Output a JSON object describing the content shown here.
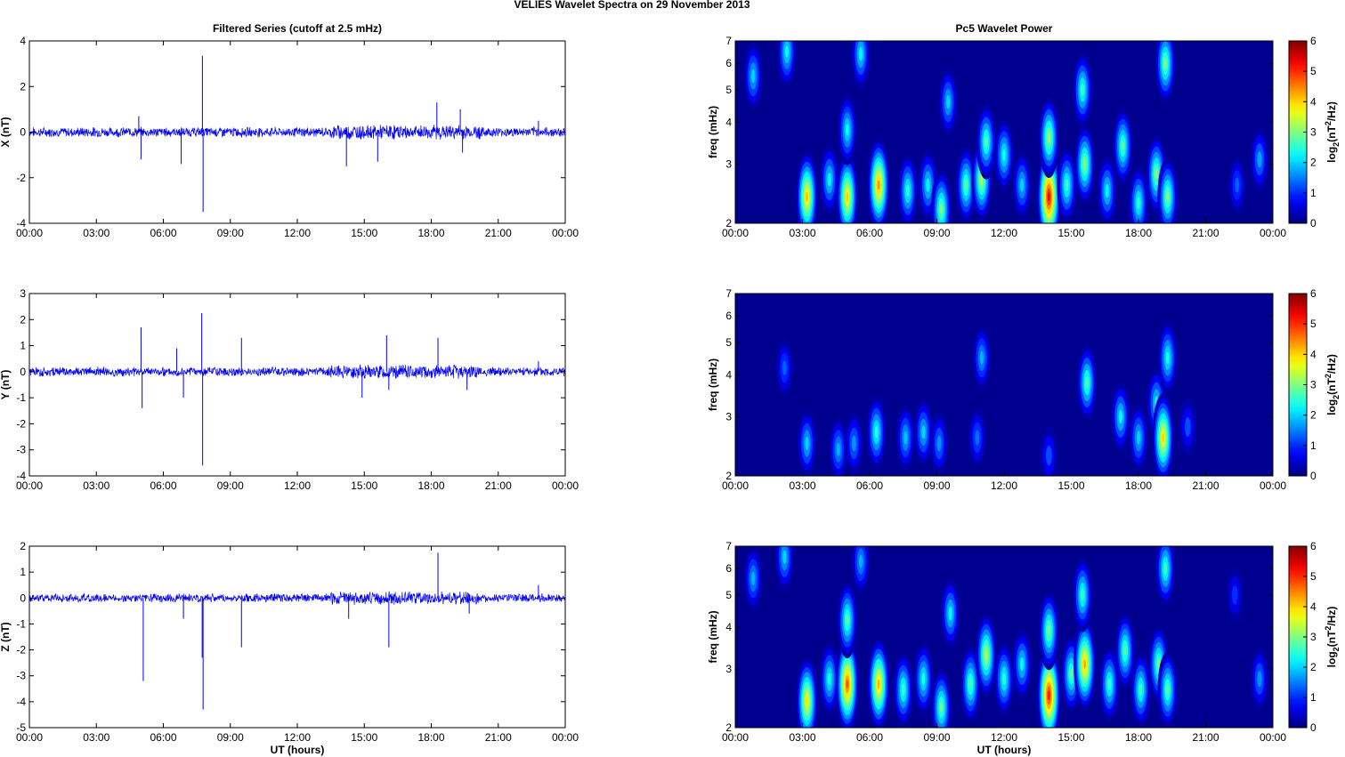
{
  "figure": {
    "suptitle": "VELIES Wavelet Spectra on 29 November  2013"
  },
  "colors": {
    "series": "#0000ff",
    "axis": "#000000",
    "spectrum_background": "#00008f",
    "colormap": "jet"
  },
  "chart_data": [
    {
      "id": "ts-x",
      "type": "line",
      "title": "Filtered Series (cutoff at 2.5 mHz)",
      "ylabel": "X (nT)",
      "xlabel": "",
      "xlim": [
        0,
        24
      ],
      "ylim": [
        -4,
        4
      ],
      "xticks": [
        "00:00",
        "03:00",
        "06:00",
        "09:00",
        "12:00",
        "15:00",
        "18:00",
        "21:00",
        "00:00"
      ],
      "yticks": [
        "-4",
        "-2",
        "0",
        "2",
        "4"
      ],
      "noise_amplitude": 0.18,
      "spikes": [
        {
          "x": 4.9,
          "y": 0.7
        },
        {
          "x": 5.0,
          "y": -1.2
        },
        {
          "x": 6.8,
          "y": -1.4
        },
        {
          "x": 7.75,
          "y": 3.35
        },
        {
          "x": 7.78,
          "y": -3.5
        },
        {
          "x": 14.2,
          "y": -1.5
        },
        {
          "x": 15.6,
          "y": -1.3
        },
        {
          "x": 18.25,
          "y": 1.3
        },
        {
          "x": 19.3,
          "y": 1.0
        },
        {
          "x": 19.4,
          "y": -0.9
        },
        {
          "x": 22.8,
          "y": 0.5
        }
      ]
    },
    {
      "id": "ts-y",
      "type": "line",
      "title": "",
      "ylabel": "Y (nT)",
      "xlabel": "",
      "xlim": [
        0,
        24
      ],
      "ylim": [
        -4,
        3
      ],
      "xticks": [
        "00:00",
        "03:00",
        "06:00",
        "09:00",
        "12:00",
        "15:00",
        "18:00",
        "21:00",
        "00:00"
      ],
      "yticks": [
        "-4",
        "-3",
        "-2",
        "-1",
        "0",
        "1",
        "2",
        "3"
      ],
      "noise_amplitude": 0.15,
      "spikes": [
        {
          "x": 5.0,
          "y": 1.7
        },
        {
          "x": 5.05,
          "y": -1.4
        },
        {
          "x": 6.6,
          "y": 0.9
        },
        {
          "x": 6.9,
          "y": -1.0
        },
        {
          "x": 7.72,
          "y": 2.25
        },
        {
          "x": 7.76,
          "y": -3.6
        },
        {
          "x": 9.5,
          "y": 1.3
        },
        {
          "x": 14.9,
          "y": -1.0
        },
        {
          "x": 16.0,
          "y": 1.4
        },
        {
          "x": 16.1,
          "y": -0.7
        },
        {
          "x": 18.3,
          "y": 1.3
        },
        {
          "x": 19.6,
          "y": -0.7
        },
        {
          "x": 22.8,
          "y": 0.4
        }
      ]
    },
    {
      "id": "ts-z",
      "type": "line",
      "title": "",
      "ylabel": "Z (nT)",
      "xlabel": "UT (hours)",
      "xlim": [
        0,
        24
      ],
      "ylim": [
        -5,
        2
      ],
      "xticks": [
        "00:00",
        "03:00",
        "06:00",
        "09:00",
        "12:00",
        "15:00",
        "18:00",
        "21:00",
        "00:00"
      ],
      "yticks": [
        "-5",
        "-4",
        "-3",
        "-2",
        "-1",
        "0",
        "1",
        "2"
      ],
      "noise_amplitude": 0.14,
      "spikes": [
        {
          "x": 5.1,
          "y": -3.2
        },
        {
          "x": 6.9,
          "y": -0.8
        },
        {
          "x": 7.78,
          "y": -4.3
        },
        {
          "x": 7.74,
          "y": -2.3
        },
        {
          "x": 9.5,
          "y": -1.9
        },
        {
          "x": 14.3,
          "y": -0.8
        },
        {
          "x": 16.1,
          "y": -1.9
        },
        {
          "x": 18.3,
          "y": 1.75
        },
        {
          "x": 19.7,
          "y": -0.6
        },
        {
          "x": 22.8,
          "y": 0.5
        }
      ]
    },
    {
      "id": "wp-x",
      "type": "heatmap",
      "title": "Pc5 Wavelet Power",
      "ylabel": "freq (mHz)",
      "xlabel": "",
      "xlim": [
        0,
        24
      ],
      "ylim": [
        2,
        7
      ],
      "yscale": "log",
      "xticks": [
        "00:00",
        "03:00",
        "06:00",
        "09:00",
        "12:00",
        "15:00",
        "18:00",
        "21:00",
        "00:00"
      ],
      "yticks": [
        "2",
        "3",
        "4",
        "5",
        "6",
        "7"
      ],
      "colorbar": {
        "label": "log2(nT^2/Hz)",
        "lim": [
          0,
          6
        ],
        "ticks": [
          "0",
          "1",
          "2",
          "3",
          "4",
          "5",
          "6"
        ]
      },
      "blobs": [
        {
          "t": 0.8,
          "f": 5.5,
          "p": 2.0
        },
        {
          "t": 2.3,
          "f": 6.5,
          "p": 2.3
        },
        {
          "t": 3.2,
          "f": 2.4,
          "p": 4.1
        },
        {
          "t": 4.2,
          "f": 2.7,
          "p": 2.2
        },
        {
          "t": 5.0,
          "f": 2.4,
          "p": 4.0
        },
        {
          "t": 5.0,
          "f": 3.8,
          "p": 2.3
        },
        {
          "t": 6.4,
          "f": 2.6,
          "p": 4.4
        },
        {
          "t": 5.6,
          "f": 6.4,
          "p": 2.2
        },
        {
          "t": 7.7,
          "f": 2.5,
          "p": 2.5
        },
        {
          "t": 8.6,
          "f": 2.6,
          "p": 2.2
        },
        {
          "t": 9.2,
          "f": 2.2,
          "p": 3.0
        },
        {
          "t": 9.5,
          "f": 4.6,
          "p": 2.0
        },
        {
          "t": 10.3,
          "f": 2.6,
          "p": 2.8
        },
        {
          "t": 11.0,
          "f": 2.7,
          "p": 3.3
        },
        {
          "t": 11.2,
          "f": 3.5,
          "p": 2.7
        },
        {
          "t": 12.0,
          "f": 3.2,
          "p": 2.4
        },
        {
          "t": 12.8,
          "f": 2.6,
          "p": 2.0
        },
        {
          "t": 14.0,
          "f": 2.4,
          "p": 5.4
        },
        {
          "t": 14.0,
          "f": 3.6,
          "p": 3.2
        },
        {
          "t": 14.8,
          "f": 2.6,
          "p": 2.6
        },
        {
          "t": 15.6,
          "f": 3.0,
          "p": 3.1
        },
        {
          "t": 15.5,
          "f": 5.0,
          "p": 2.6
        },
        {
          "t": 16.6,
          "f": 2.5,
          "p": 2.2
        },
        {
          "t": 17.3,
          "f": 3.4,
          "p": 2.8
        },
        {
          "t": 18.0,
          "f": 2.3,
          "p": 2.5
        },
        {
          "t": 18.8,
          "f": 2.8,
          "p": 3.0
        },
        {
          "t": 19.2,
          "f": 6.0,
          "p": 3.0
        },
        {
          "t": 19.3,
          "f": 2.4,
          "p": 3.0
        },
        {
          "t": 22.4,
          "f": 2.6,
          "p": 1.3
        },
        {
          "t": 23.4,
          "f": 3.1,
          "p": 1.7
        }
      ]
    },
    {
      "id": "wp-y",
      "type": "heatmap",
      "title": "",
      "ylabel": "freq (mHz)",
      "xlabel": "",
      "xlim": [
        0,
        24
      ],
      "ylim": [
        2,
        7
      ],
      "yscale": "log",
      "xticks": [
        "00:00",
        "03:00",
        "06:00",
        "09:00",
        "12:00",
        "15:00",
        "18:00",
        "21:00",
        "00:00"
      ],
      "yticks": [
        "2",
        "3",
        "4",
        "5",
        "6",
        "7"
      ],
      "colorbar": {
        "label": "log2(nT^2/Hz)",
        "lim": [
          0,
          6
        ],
        "ticks": [
          "0",
          "1",
          "2",
          "3",
          "4",
          "5",
          "6"
        ]
      },
      "blobs": [
        {
          "t": 2.2,
          "f": 4.2,
          "p": 1.3
        },
        {
          "t": 3.2,
          "f": 2.5,
          "p": 2.0
        },
        {
          "t": 4.6,
          "f": 2.4,
          "p": 1.8
        },
        {
          "t": 5.3,
          "f": 2.5,
          "p": 1.6
        },
        {
          "t": 6.3,
          "f": 2.7,
          "p": 2.5
        },
        {
          "t": 7.6,
          "f": 2.6,
          "p": 1.9
        },
        {
          "t": 8.4,
          "f": 2.7,
          "p": 2.0
        },
        {
          "t": 9.1,
          "f": 2.5,
          "p": 1.6
        },
        {
          "t": 10.8,
          "f": 2.6,
          "p": 1.4
        },
        {
          "t": 11.0,
          "f": 4.5,
          "p": 1.8
        },
        {
          "t": 14.0,
          "f": 2.3,
          "p": 1.2
        },
        {
          "t": 15.7,
          "f": 3.8,
          "p": 2.7
        },
        {
          "t": 17.2,
          "f": 3.0,
          "p": 2.2
        },
        {
          "t": 18.0,
          "f": 2.6,
          "p": 2.0
        },
        {
          "t": 18.8,
          "f": 3.3,
          "p": 2.2
        },
        {
          "t": 19.1,
          "f": 2.6,
          "p": 4.0
        },
        {
          "t": 19.3,
          "f": 4.5,
          "p": 2.4
        },
        {
          "t": 20.2,
          "f": 2.8,
          "p": 1.2
        }
      ]
    },
    {
      "id": "wp-z",
      "type": "heatmap",
      "title": "",
      "ylabel": "freq (mHz)",
      "xlabel": "UT (hours)",
      "xlim": [
        0,
        24
      ],
      "ylim": [
        2,
        7
      ],
      "yscale": "log",
      "xticks": [
        "00:00",
        "03:00",
        "06:00",
        "09:00",
        "12:00",
        "15:00",
        "18:00",
        "21:00",
        "00:00"
      ],
      "yticks": [
        "2",
        "3",
        "4",
        "5",
        "6",
        "7"
      ],
      "colorbar": {
        "label": "log2(nT^2/Hz)",
        "lim": [
          0,
          6
        ],
        "ticks": [
          "0",
          "1",
          "2",
          "3",
          "4",
          "5",
          "6"
        ]
      },
      "blobs": [
        {
          "t": 0.8,
          "f": 5.6,
          "p": 1.8
        },
        {
          "t": 2.2,
          "f": 6.5,
          "p": 2.0
        },
        {
          "t": 3.2,
          "f": 2.4,
          "p": 3.9
        },
        {
          "t": 4.2,
          "f": 2.8,
          "p": 2.4
        },
        {
          "t": 5.0,
          "f": 2.7,
          "p": 4.8
        },
        {
          "t": 5.0,
          "f": 4.2,
          "p": 2.8
        },
        {
          "t": 6.4,
          "f": 2.7,
          "p": 4.2
        },
        {
          "t": 5.6,
          "f": 6.3,
          "p": 1.8
        },
        {
          "t": 7.5,
          "f": 2.6,
          "p": 2.6
        },
        {
          "t": 8.4,
          "f": 2.8,
          "p": 2.4
        },
        {
          "t": 9.2,
          "f": 2.3,
          "p": 2.9
        },
        {
          "t": 9.6,
          "f": 4.4,
          "p": 2.2
        },
        {
          "t": 10.5,
          "f": 2.7,
          "p": 2.8
        },
        {
          "t": 11.2,
          "f": 3.3,
          "p": 3.4
        },
        {
          "t": 12.0,
          "f": 2.8,
          "p": 2.5
        },
        {
          "t": 12.8,
          "f": 3.1,
          "p": 2.2
        },
        {
          "t": 14.0,
          "f": 2.5,
          "p": 5.2
        },
        {
          "t": 14.0,
          "f": 3.9,
          "p": 3.0
        },
        {
          "t": 15.0,
          "f": 2.9,
          "p": 2.8
        },
        {
          "t": 15.6,
          "f": 3.1,
          "p": 4.3
        },
        {
          "t": 15.5,
          "f": 5.0,
          "p": 2.6
        },
        {
          "t": 16.7,
          "f": 2.7,
          "p": 2.6
        },
        {
          "t": 17.4,
          "f": 3.4,
          "p": 2.8
        },
        {
          "t": 18.1,
          "f": 2.6,
          "p": 2.6
        },
        {
          "t": 18.9,
          "f": 3.1,
          "p": 2.9
        },
        {
          "t": 19.3,
          "f": 2.6,
          "p": 2.8
        },
        {
          "t": 19.2,
          "f": 6.0,
          "p": 2.6
        },
        {
          "t": 22.3,
          "f": 5.0,
          "p": 1.0
        },
        {
          "t": 23.4,
          "f": 2.8,
          "p": 1.6
        }
      ]
    }
  ]
}
